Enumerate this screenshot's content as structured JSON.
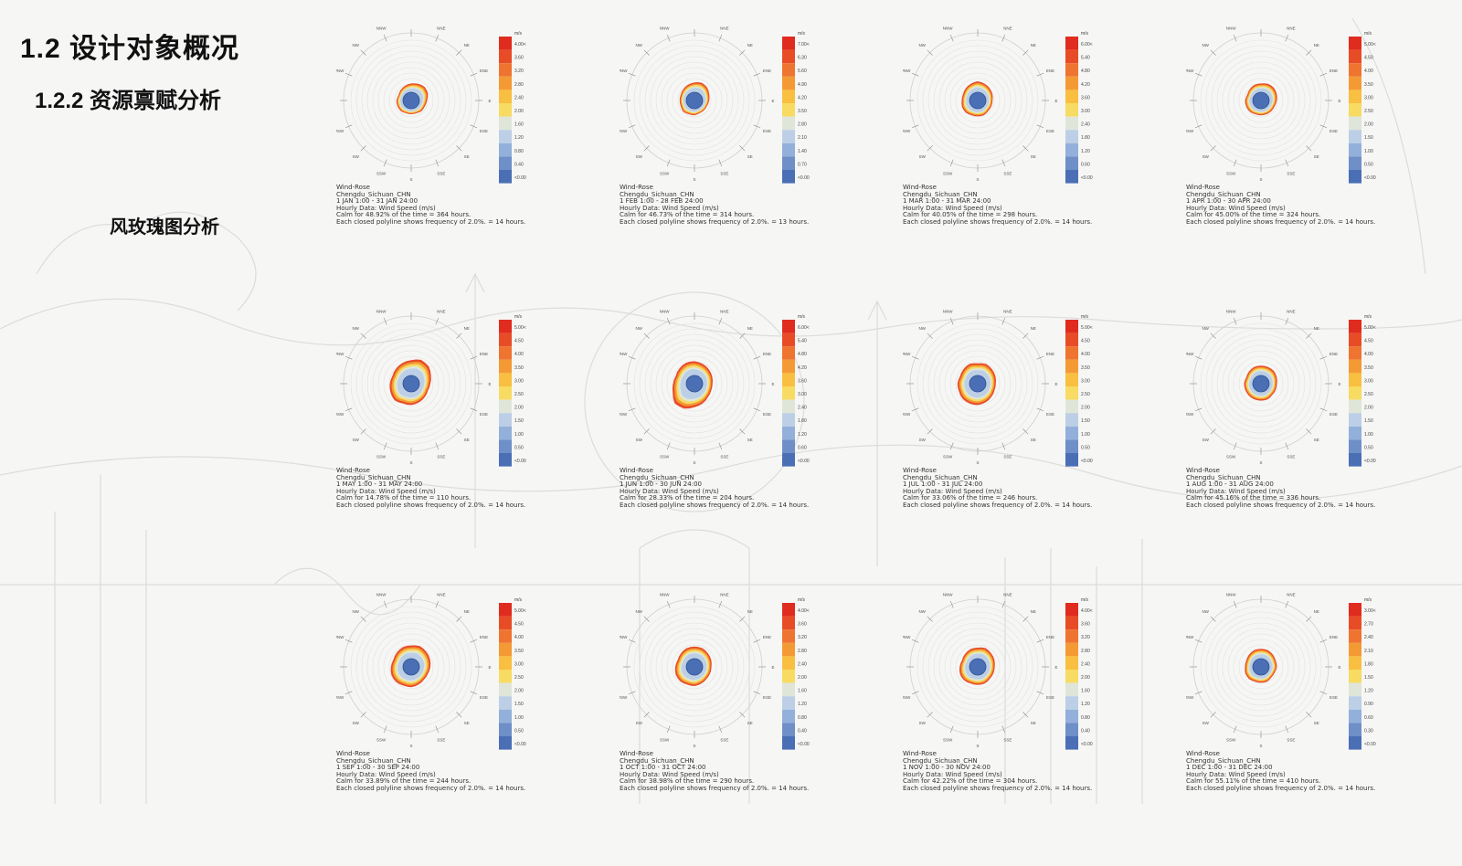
{
  "header": {
    "title": "1.2 设计对象概况",
    "subtitle": "1.2.2 资源禀赋分析",
    "section": "风玫瑰图分析"
  },
  "colors": {
    "scale": [
      "#4a6fb5",
      "#6f8fc8",
      "#93b0da",
      "#bccfe6",
      "#dfe6d9",
      "#f3ee9a",
      "#f7db63",
      "#f8bf41",
      "#f49a35",
      "#ee7430",
      "#e84c27",
      "#e02b1f"
    ],
    "calm": "#4a6fb5"
  },
  "compass_labels": [
    "N",
    "NNE",
    "NE",
    "ENE",
    "E",
    "ESE",
    "SE",
    "SSE",
    "S",
    "SSW",
    "SW",
    "WSW",
    "W",
    "WNW",
    "NW",
    "NNW"
  ],
  "unit": "m/s",
  "chart_data": [
    {
      "type": "wind-rose",
      "month": "JAN",
      "caption": [
        "Wind-Rose",
        "Chengdu_Sichuan_CHN",
        "1 JAN 1:00 - 31 JAN 24:00",
        "Hourly Data: Wind Speed (m/s)",
        "Calm for 48.92% of the time = 364 hours.",
        "Each closed polyline shows frequency of 2.0%. = 14 hours."
      ],
      "legend": [
        "4.00<",
        "3.60",
        "3.20",
        "2.80",
        "2.40",
        "2.00",
        "1.60",
        "1.20",
        "0.80",
        "0.40",
        "<0.00"
      ],
      "calm_pct": 48.92,
      "calm_hours": 364,
      "petal": [
        8,
        9,
        10,
        9,
        7,
        6,
        6,
        5,
        5,
        5,
        6,
        6,
        6,
        5,
        6,
        7
      ]
    },
    {
      "type": "wind-rose",
      "month": "FEB",
      "caption": [
        "Wind-Rose",
        "Chengdu_Sichuan_CHN",
        "1 FEB 1:00 - 28 FEB 24:00",
        "Hourly Data: Wind Speed (m/s)",
        "Calm for 46.73% of the time = 314 hours.",
        "Each closed polyline shows frequency of 2.0%. = 13 hours."
      ],
      "legend": [
        "7.00<",
        "6.30",
        "5.60",
        "4.90",
        "4.20",
        "3.50",
        "2.80",
        "2.10",
        "1.40",
        "0.70",
        "<0.00"
      ],
      "calm_pct": 46.73,
      "calm_hours": 314,
      "petal": [
        9,
        10,
        9,
        7,
        6,
        5,
        5,
        5,
        6,
        6,
        7,
        6,
        6,
        6,
        7,
        8
      ]
    },
    {
      "type": "wind-rose",
      "month": "MAR",
      "caption": [
        "Wind-Rose",
        "Chengdu_Sichuan_CHN",
        "1 MAR 1:00 - 31 MAR 24:00",
        "Hourly Data: Wind Speed (m/s)",
        "Calm for 40.05% of the time = 298 hours.",
        "Each closed polyline shows frequency of 2.0%. = 14 hours."
      ],
      "legend": [
        "6.00<",
        "5.40",
        "4.80",
        "4.20",
        "3.60",
        "3.00",
        "2.40",
        "1.80",
        "1.20",
        "0.60",
        "<0.00"
      ],
      "calm_pct": 40.05,
      "calm_hours": 298,
      "petal": [
        10,
        9,
        8,
        7,
        6,
        6,
        6,
        7,
        7,
        7,
        8,
        8,
        7,
        7,
        8,
        9
      ]
    },
    {
      "type": "wind-rose",
      "month": "APR",
      "caption": [
        "Wind-Rose",
        "Chengdu_Sichuan_CHN",
        "1 APR 1:00 - 30 APR 24:00",
        "Hourly Data: Wind Speed (m/s)",
        "Calm for 45.00% of the time = 324 hours.",
        "Each closed polyline shows frequency of 2.0%. = 14 hours."
      ],
      "legend": [
        "5.00<",
        "4.50",
        "4.00",
        "3.50",
        "3.00",
        "2.50",
        "2.00",
        "1.50",
        "1.00",
        "0.50",
        "<0.00"
      ],
      "calm_pct": 45.0,
      "calm_hours": 324,
      "petal": [
        8,
        9,
        9,
        8,
        7,
        6,
        6,
        6,
        6,
        6,
        7,
        7,
        7,
        6,
        7,
        8
      ]
    },
    {
      "type": "wind-rose",
      "month": "MAY",
      "caption": [
        "Wind-Rose",
        "Chengdu_Sichuan_CHN",
        "1 MAY 1:00 - 31 MAY 24:00",
        "Hourly Data: Wind Speed (m/s)",
        "Calm for 14.78% of the time = 110 hours.",
        "Each closed polyline shows frequency of 2.0%. = 14 hours."
      ],
      "legend": [
        "5.00<",
        "4.50",
        "4.00",
        "3.50",
        "3.00",
        "2.50",
        "2.00",
        "1.50",
        "1.00",
        "0.50",
        "<0.00"
      ],
      "calm_pct": 14.78,
      "calm_hours": 110,
      "petal": [
        14,
        16,
        15,
        12,
        10,
        9,
        10,
        11,
        12,
        12,
        14,
        13,
        12,
        11,
        12,
        13
      ]
    },
    {
      "type": "wind-rose",
      "month": "JUN",
      "caption": [
        "Wind-Rose",
        "Chengdu_Sichuan_CHN",
        "1 JUN 1:00 - 30 JUN 24:00",
        "Hourly Data: Wind Speed (m/s)",
        "Calm for 28.33% of the time = 204 hours.",
        "Each closed polyline shows frequency of 2.0%. = 14 hours."
      ],
      "legend": [
        "6.00<",
        "5.40",
        "4.80",
        "4.20",
        "3.60",
        "3.00",
        "2.40",
        "1.80",
        "1.20",
        "0.60",
        "<0.00"
      ],
      "calm_pct": 28.33,
      "calm_hours": 204,
      "petal": [
        13,
        12,
        11,
        10,
        9,
        9,
        10,
        12,
        14,
        17,
        18,
        14,
        12,
        11,
        12,
        13
      ]
    },
    {
      "type": "wind-rose",
      "month": "JUL",
      "caption": [
        "Wind-Rose",
        "Chengdu_Sichuan_CHN",
        "1 JUL 1:00 - 31 JUL 24:00",
        "Hourly Data: Wind Speed (m/s)",
        "Calm for 33.06% of the time = 246 hours.",
        "Each closed polyline shows frequency of 2.0%. = 14 hours."
      ],
      "legend": [
        "5.00<",
        "4.50",
        "4.00",
        "3.50",
        "3.00",
        "2.50",
        "2.00",
        "1.50",
        "1.00",
        "0.50",
        "<0.00"
      ],
      "calm_pct": 33.06,
      "calm_hours": 246,
      "petal": [
        11,
        12,
        11,
        10,
        9,
        9,
        10,
        11,
        12,
        12,
        12,
        11,
        11,
        10,
        11,
        12
      ]
    },
    {
      "type": "wind-rose",
      "month": "AUG",
      "caption": [
        "Wind-Rose",
        "Chengdu_Sichuan_CHN",
        "1 AUG 1:00 - 31 AUG 24:00",
        "Hourly Data: Wind Speed (m/s)",
        "Calm for 45.16% of the time = 336 hours.",
        "Each closed polyline shows frequency of 2.0%. = 14 hours."
      ],
      "legend": [
        "5.00<",
        "4.50",
        "4.00",
        "3.50",
        "3.00",
        "2.50",
        "2.00",
        "1.50",
        "1.00",
        "0.50",
        "<0.00"
      ],
      "calm_pct": 45.16,
      "calm_hours": 336,
      "petal": [
        9,
        9,
        9,
        8,
        7,
        7,
        7,
        8,
        8,
        8,
        8,
        8,
        8,
        7,
        8,
        9
      ]
    },
    {
      "type": "wind-rose",
      "month": "SEP",
      "caption": [
        "Wind-Rose",
        "Chengdu_Sichuan_CHN",
        "1 SEP 1:00 - 30 SEP 24:00",
        "Hourly Data: Wind Speed (m/s)",
        "Calm for 33.89% of the time = 244 hours.",
        "Each closed polyline shows frequency of 2.0%. = 14 hours."
      ],
      "legend": [
        "5.00<",
        "4.50",
        "4.00",
        "3.50",
        "3.00",
        "2.50",
        "2.00",
        "1.50",
        "1.00",
        "0.50",
        "<0.00"
      ],
      "calm_pct": 33.89,
      "calm_hours": 244,
      "petal": [
        12,
        13,
        12,
        11,
        10,
        9,
        9,
        10,
        11,
        11,
        12,
        12,
        11,
        10,
        11,
        12
      ]
    },
    {
      "type": "wind-rose",
      "month": "OCT",
      "caption": [
        "Wind-Rose",
        "Chengdu_Sichuan_CHN",
        "1 OCT 1:00 - 31 OCT 24:00",
        "Hourly Data: Wind Speed (m/s)",
        "Calm for 38.98% of the time = 290 hours.",
        "Each closed polyline shows frequency of 2.0%. = 14 hours."
      ],
      "legend": [
        "4.00<",
        "3.60",
        "3.20",
        "2.80",
        "2.40",
        "2.00",
        "1.60",
        "1.20",
        "0.80",
        "0.40",
        "<0.00"
      ],
      "calm_pct": 38.98,
      "calm_hours": 290,
      "petal": [
        11,
        11,
        10,
        9,
        8,
        8,
        8,
        9,
        10,
        10,
        11,
        11,
        10,
        9,
        10,
        11
      ]
    },
    {
      "type": "wind-rose",
      "month": "NOV",
      "caption": [
        "Wind-Rose",
        "Chengdu_Sichuan_CHN",
        "1 NOV 1:00 - 30 NOV 24:00",
        "Hourly Data: Wind Speed (m/s)",
        "Calm for 42.22% of the time = 304 hours.",
        "Each closed polyline shows frequency of 2.0%. = 14 hours."
      ],
      "legend": [
        "4.00<",
        "3.60",
        "3.20",
        "2.80",
        "2.40",
        "2.00",
        "1.60",
        "1.20",
        "0.80",
        "0.40",
        "<0.00"
      ],
      "calm_pct": 42.22,
      "calm_hours": 304,
      "petal": [
        10,
        11,
        10,
        9,
        8,
        8,
        8,
        9,
        9,
        9,
        10,
        10,
        9,
        8,
        9,
        10
      ]
    },
    {
      "type": "wind-rose",
      "month": "DEC",
      "caption": [
        "Wind-Rose",
        "Chengdu_Sichuan_CHN",
        "1 DEC 1:00 - 31 DEC 24:00",
        "Hourly Data: Wind Speed (m/s)",
        "Calm for 55.11% of the time = 410 hours.",
        "Each closed polyline shows frequency of 2.0%. = 14 hours."
      ],
      "legend": [
        "3.00<",
        "2.70",
        "2.40",
        "2.10",
        "1.80",
        "1.50",
        "1.20",
        "0.90",
        "0.60",
        "0.30",
        "<0.00"
      ],
      "calm_pct": 55.11,
      "calm_hours": 410,
      "petal": [
        9,
        9,
        8,
        7,
        7,
        6,
        6,
        7,
        7,
        7,
        8,
        8,
        7,
        7,
        8,
        9
      ]
    }
  ]
}
